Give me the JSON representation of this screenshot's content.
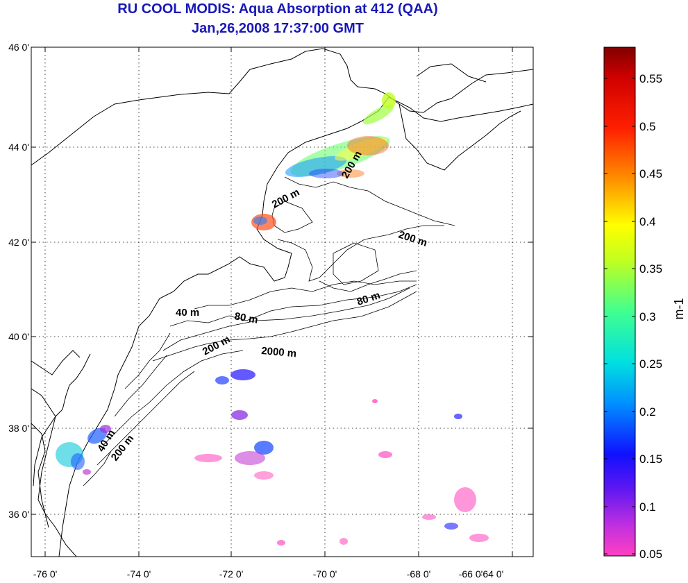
{
  "title": {
    "line1": "RU COOL MODIS: Aqua Absorption at 412 (QAA)",
    "line2": "Jan,26,2008 17:37:00 GMT"
  },
  "map": {
    "lon_ticks": [
      "-76 0'",
      "-74 0'",
      "-72 0'",
      "-70 0'",
      "-68 0'",
      "-66 0'",
      "-64 0'"
    ],
    "lat_ticks": [
      "46 0'",
      "44 0'",
      "42 0'",
      "40 0'",
      "38 0'",
      "36 0'"
    ],
    "contour_labels": [
      "200 m",
      "200 m",
      "200 m",
      "80 m",
      "40 m",
      "80 m",
      "200 m",
      "2000 m",
      "40 m",
      "200 m"
    ],
    "grid": "dotted"
  },
  "colorbar": {
    "unit": "m-1",
    "ticks": [
      "0.55",
      "0.5",
      "0.45",
      "0.4",
      "0.35",
      "0.3",
      "0.25",
      "0.2",
      "0.15",
      "0.1",
      "0.05"
    ],
    "colors": [
      "#ff40c0",
      "#9020e0",
      "#2010ff",
      "#00c0ff",
      "#40ff80",
      "#ffff00",
      "#ff8000",
      "#ff0000",
      "#800000"
    ]
  }
}
